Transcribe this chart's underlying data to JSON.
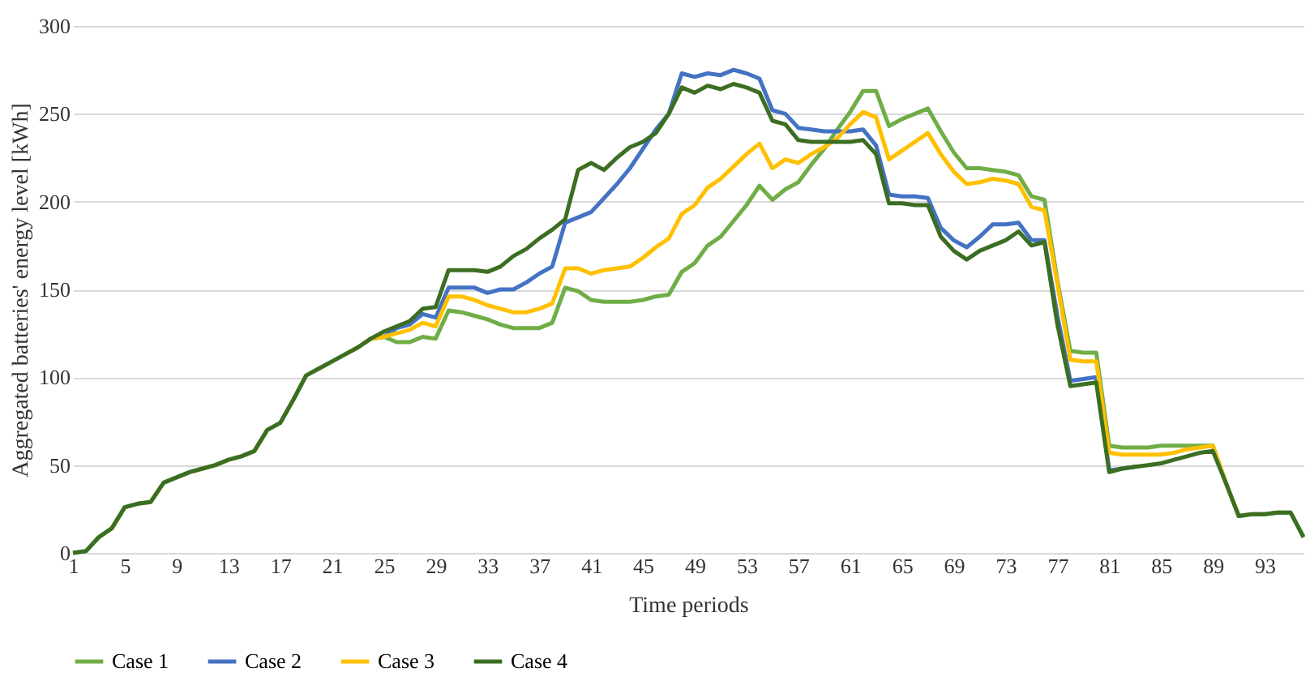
{
  "chart_data": {
    "type": "line",
    "xlabel": "Time periods",
    "ylabel": "Aggregated batteries' energy level [kWh]",
    "x": [
      1,
      2,
      3,
      4,
      5,
      6,
      7,
      8,
      9,
      10,
      11,
      12,
      13,
      14,
      15,
      16,
      17,
      18,
      19,
      20,
      21,
      22,
      23,
      24,
      25,
      26,
      27,
      28,
      29,
      30,
      31,
      32,
      33,
      34,
      35,
      36,
      37,
      38,
      39,
      40,
      41,
      42,
      43,
      44,
      45,
      46,
      47,
      48,
      49,
      50,
      51,
      52,
      53,
      54,
      55,
      56,
      57,
      58,
      59,
      60,
      61,
      62,
      63,
      64,
      65,
      66,
      67,
      68,
      69,
      70,
      71,
      72,
      73,
      74,
      75,
      76,
      77,
      78,
      79,
      80,
      81,
      82,
      83,
      84,
      85,
      86,
      87,
      88,
      89,
      90,
      91,
      92,
      93,
      94,
      95,
      96
    ],
    "xlim": [
      1,
      96
    ],
    "xticks": [
      1,
      5,
      9,
      13,
      17,
      21,
      25,
      29,
      33,
      37,
      41,
      45,
      49,
      53,
      57,
      61,
      65,
      69,
      73,
      77,
      81,
      85,
      89,
      93
    ],
    "ylim": [
      0,
      300
    ],
    "yticks": [
      0,
      50,
      100,
      150,
      200,
      250,
      300
    ],
    "grid": "y",
    "legend": "bottom",
    "line_style": "solid",
    "series": [
      {
        "name": "Case 1",
        "color": "#70ad47",
        "values": [
          0,
          1,
          9,
          14,
          26,
          28,
          29,
          40,
          43,
          46,
          48,
          50,
          53,
          55,
          58,
          70,
          74,
          87,
          101,
          105,
          109,
          113,
          117,
          122,
          123,
          120,
          120,
          123,
          122,
          138,
          137,
          135,
          133,
          130,
          128,
          128,
          128,
          131,
          151,
          149,
          144,
          143,
          143,
          143,
          144,
          146,
          147,
          160,
          165,
          175,
          180,
          189,
          198,
          209,
          201,
          207,
          211,
          221,
          230,
          241,
          251,
          263,
          263,
          243,
          247,
          250,
          253,
          240,
          228,
          219,
          219,
          218,
          217,
          215,
          203,
          201,
          155,
          115,
          114,
          114,
          61,
          60,
          60,
          60,
          61,
          61,
          61,
          61,
          61,
          40,
          21,
          22,
          22,
          23,
          23,
          9
        ]
      },
      {
        "name": "Case 2",
        "color": "#4472c4",
        "values": [
          null,
          null,
          null,
          null,
          null,
          null,
          null,
          null,
          null,
          null,
          null,
          null,
          null,
          null,
          null,
          null,
          null,
          null,
          null,
          null,
          null,
          null,
          null,
          122,
          123,
          128,
          130,
          136,
          134,
          151,
          151,
          151,
          148,
          150,
          150,
          154,
          159,
          163,
          188,
          191,
          194,
          202,
          210,
          219,
          230,
          241,
          250,
          273,
          271,
          273,
          272,
          275,
          273,
          270,
          252,
          250,
          242,
          241,
          240,
          240,
          240,
          241,
          232,
          204,
          203,
          203,
          202,
          185,
          178,
          174,
          180,
          187,
          187,
          188,
          178,
          178,
          135,
          98,
          99,
          100,
          47,
          48,
          49,
          null,
          null,
          null,
          null,
          null,
          null,
          null,
          null,
          null,
          null,
          null,
          null,
          null
        ]
      },
      {
        "name": "Case 3",
        "color": "#ffc000",
        "values": [
          null,
          null,
          null,
          null,
          null,
          null,
          null,
          null,
          null,
          null,
          null,
          null,
          null,
          null,
          null,
          null,
          null,
          null,
          null,
          null,
          null,
          113,
          117,
          122,
          123,
          125,
          127,
          131,
          129,
          146,
          146,
          144,
          141,
          139,
          137,
          137,
          139,
          142,
          162,
          162,
          159,
          161,
          162,
          163,
          168,
          174,
          179,
          193,
          198,
          208,
          213,
          220,
          227,
          233,
          219,
          224,
          222,
          227,
          231,
          236,
          244,
          251,
          248,
          224,
          229,
          234,
          239,
          227,
          217,
          210,
          211,
          213,
          212,
          210,
          197,
          195,
          153,
          110,
          109,
          109,
          57,
          56,
          56,
          56,
          56,
          57,
          59,
          60,
          61,
          40,
          21,
          null,
          null,
          null,
          null,
          null
        ]
      },
      {
        "name": "Case 4",
        "color": "#3b6e22",
        "values": [
          0,
          1,
          9,
          14,
          26,
          28,
          29,
          40,
          43,
          46,
          48,
          50,
          53,
          55,
          58,
          70,
          74,
          87,
          101,
          105,
          109,
          113,
          117,
          122,
          126,
          129,
          132,
          139,
          140,
          161,
          161,
          161,
          160,
          163,
          169,
          173,
          179,
          184,
          190,
          218,
          222,
          218,
          225,
          231,
          234,
          239,
          250,
          265,
          262,
          266,
          264,
          267,
          265,
          262,
          246,
          244,
          235,
          234,
          234,
          234,
          234,
          235,
          227,
          199,
          199,
          198,
          198,
          180,
          172,
          167,
          172,
          175,
          178,
          183,
          175,
          177,
          130,
          95,
          96,
          97,
          46,
          48,
          49,
          50,
          51,
          53,
          55,
          57,
          58,
          40,
          21,
          22,
          22,
          23,
          23,
          9
        ]
      }
    ]
  }
}
